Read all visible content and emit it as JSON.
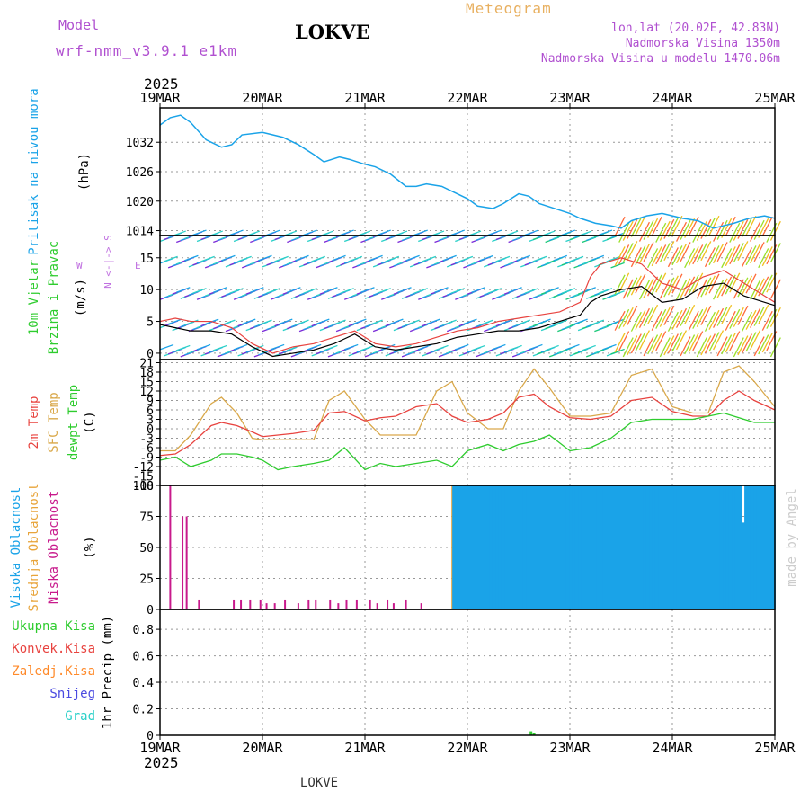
{
  "header": {
    "model_label": "Model",
    "model_name": "wrf-nmm_v3.9.1 e1km",
    "station": "LOKVE",
    "title": "Meteogram",
    "coords": "lon,lat (20.02E, 42.83N)",
    "elevation": "Nadmorska Visina 1350m",
    "model_elevation": "Nadmorska Visina u modelu 1470.06m",
    "credit": "made by Angel"
  },
  "colors": {
    "pressure": "#1aa3e8",
    "temp2m": "#e8433f",
    "sfc_temp": "#d9a84a",
    "dewpoint": "#2ecc2e",
    "high_cloud": "#1aa3e8",
    "mid_cloud": "#e8a43a",
    "low_cloud": "#c81a8c",
    "wind_speed": "#000000",
    "wind_gust": "#e8433f"
  },
  "time_axis": {
    "year": "2025",
    "labels": [
      "19MAR",
      "20MAR",
      "21MAR",
      "22MAR",
      "23MAR",
      "24MAR",
      "25MAR"
    ]
  },
  "panels": {
    "pressure": {
      "ylabel_left": "Pritisak na nivou mora",
      "unit": "(hPa)",
      "ticks": [
        "1014",
        "1020",
        "1026",
        "1032"
      ]
    },
    "wind": {
      "ylabel_left_1": "10m Vjetar",
      "ylabel_left_2": "Brzina i Pravac",
      "unit": "(m/s)",
      "ticks": [
        "0",
        "5",
        "10",
        "15"
      ],
      "compass": [
        "N",
        "W",
        "E",
        "S"
      ]
    },
    "temp": {
      "ylabel_1": "2m Temp",
      "ylabel_2": "SFC Temp",
      "ylabel_3": "dewpt Temp",
      "unit": "(C)",
      "ticks": [
        "-18",
        "-15",
        "-12",
        "-9",
        "-6",
        "-3",
        "0",
        "3",
        "6",
        "9",
        "12",
        "15",
        "18",
        "21"
      ]
    },
    "cloud": {
      "ylabel_1": "Visoka Oblacnost",
      "ylabel_2": "Srednja Oblacnost",
      "ylabel_3": "Niska Oblacnost",
      "unit": "(%)",
      "ticks": [
        "0",
        "25",
        "50",
        "75",
        "100"
      ]
    },
    "precip": {
      "ylabel": "1hr Precip (mm)",
      "ticks": [
        "0",
        "0.2",
        "0.4",
        "0.6",
        "0.8"
      ],
      "legend": [
        "Ukupna Kisa",
        "Konvek.Kisa",
        "Zaledj.Kisa",
        "Snijeg",
        "Grad"
      ]
    }
  },
  "chart_data": [
    {
      "type": "line",
      "title": "",
      "ylabel": "Pritisak na nivou mora (hPa)",
      "ylim": [
        1013,
        1039
      ],
      "x": [
        0,
        0.1,
        0.2,
        0.3,
        0.45,
        0.6,
        0.7,
        0.8,
        1,
        1.1,
        1.2,
        1.35,
        1.5,
        1.6,
        1.75,
        1.85,
        2,
        2.1,
        2.25,
        2.4,
        2.5,
        2.6,
        2.75,
        2.9,
        3,
        3.1,
        3.25,
        3.35,
        3.5,
        3.6,
        3.7,
        3.85,
        4,
        4.1,
        4.25,
        4.4,
        4.5,
        4.6,
        4.75,
        4.9,
        5,
        5.1,
        5.25,
        5.4,
        5.5,
        5.6,
        5.75,
        5.9,
        6
      ],
      "series": [
        {
          "name": "",
          "values": [
            1035.5,
            1037,
            1037.5,
            1036,
            1032.5,
            1031,
            1031.5,
            1033.5,
            1034,
            1033.5,
            1033,
            1031.5,
            1029.5,
            1028,
            1029,
            1028.5,
            1027.5,
            1027,
            1025.5,
            1023,
            1023,
            1023.5,
            1023,
            1021.5,
            1020.5,
            1019,
            1018.5,
            1019.5,
            1021.5,
            1021,
            1019.5,
            1018.5,
            1017.5,
            1016.5,
            1015.5,
            1015,
            1014.5,
            1016,
            1017,
            1017.5,
            1017,
            1016.5,
            1016,
            1014.5,
            1015,
            1015.5,
            1016.5,
            1017,
            1016.5
          ]
        }
      ]
    },
    {
      "type": "line",
      "title": "",
      "ylabel": "10m Vjetar Brzina i Pravac (m/s)",
      "ylim": [
        -1,
        18.5
      ],
      "x": [
        0,
        0.15,
        0.3,
        0.5,
        0.7,
        0.9,
        1.1,
        1.3,
        1.5,
        1.7,
        1.9,
        2.1,
        2.3,
        2.5,
        2.7,
        2.9,
        3.1,
        3.3,
        3.5,
        3.7,
        3.9,
        4.1,
        4.2,
        4.3,
        4.5,
        4.7,
        4.9,
        5.1,
        5.3,
        5.5,
        5.7,
        5.9,
        6
      ],
      "series": [
        {
          "name": "",
          "values": [
            4.5,
            4,
            3.5,
            3.5,
            3,
            1,
            -0.5,
            0,
            0.5,
            1.5,
            3,
            1,
            0.5,
            1,
            1.5,
            2.5,
            3,
            3.5,
            3.5,
            4,
            5,
            6,
            8,
            9,
            10,
            10.5,
            8,
            8.5,
            10.5,
            11,
            9,
            8,
            7.5
          ]
        },
        {
          "name": "",
          "values": [
            5,
            5.5,
            5,
            5,
            4,
            1.5,
            0,
            1,
            1.5,
            2.5,
            3.5,
            1.5,
            1,
            1.5,
            2.5,
            3.5,
            4,
            5,
            5.5,
            6,
            6.5,
            8,
            12,
            14,
            15,
            14,
            11,
            10,
            12,
            13,
            11,
            9,
            8
          ]
        }
      ]
    },
    {
      "type": "line",
      "title": "",
      "ylabel": "(C)",
      "ylim": [
        -18,
        22
      ],
      "x": [
        0,
        0.15,
        0.3,
        0.5,
        0.6,
        0.75,
        0.9,
        1,
        1.15,
        1.3,
        1.5,
        1.65,
        1.8,
        2,
        2.15,
        2.3,
        2.5,
        2.7,
        2.85,
        3,
        3.2,
        3.35,
        3.5,
        3.65,
        3.8,
        4,
        4.2,
        4.4,
        4.6,
        4.8,
        5,
        5.2,
        5.35,
        5.5,
        5.65,
        5.8,
        6
      ],
      "series": [
        {
          "name": "2m Temp",
          "values": [
            -8.5,
            -8,
            -5,
            1,
            2,
            1,
            -1,
            -2.5,
            -2,
            -1.5,
            -0.5,
            5,
            5.5,
            2.5,
            3.5,
            4,
            7,
            8,
            4,
            2,
            3,
            5,
            10,
            11,
            7,
            3.5,
            3,
            4,
            9,
            10,
            5.5,
            4,
            4,
            9,
            12,
            9,
            6
          ]
        },
        {
          "name": "SFC Temp",
          "values": [
            -7,
            -7,
            -2,
            8,
            10,
            5,
            -3,
            -3.5,
            -3.5,
            -3.5,
            -3.5,
            9,
            12,
            3,
            -2,
            -2,
            -2,
            12,
            15,
            5,
            0,
            0,
            12,
            19,
            13,
            4,
            4,
            5,
            17,
            19,
            7,
            5,
            5,
            18,
            20,
            15,
            7
          ]
        },
        {
          "name": "dewpt Temp",
          "values": [
            -10,
            -9,
            -12,
            -10,
            -8,
            -8,
            -9,
            -10,
            -13,
            -12,
            -11,
            -10,
            -6,
            -13,
            -11,
            -12,
            -11,
            -10,
            -12,
            -7,
            -5,
            -7,
            -5,
            -4,
            -2,
            -7,
            -6,
            -3,
            2,
            3,
            3,
            3,
            4,
            5,
            3.5,
            2,
            2
          ]
        }
      ]
    },
    {
      "type": "bar",
      "title": "",
      "ylabel": "Oblacnost (%)",
      "ylim": [
        0,
        100
      ],
      "series": [
        {
          "name": "Niska Oblacnost",
          "x": [
            0.1,
            0.22,
            0.26,
            0.38,
            0.72,
            0.79,
            0.88,
            0.98,
            1.04,
            1.12,
            1.22,
            1.35,
            1.45,
            1.52,
            1.66,
            1.74,
            1.82,
            1.92,
            2.05,
            2.12,
            2.22,
            2.28,
            2.4,
            2.55
          ],
          "values": [
            100,
            75,
            75,
            8,
            8,
            8,
            8,
            8,
            5,
            5,
            8,
            5,
            8,
            8,
            8,
            5,
            8,
            8,
            8,
            5,
            8,
            5,
            8,
            5
          ]
        },
        {
          "name": "Srednja Oblacnost",
          "x_range": [
            2.85,
            4.95
          ],
          "values": [
            100
          ],
          "gaps": [
            3.63,
            4.05
          ]
        },
        {
          "name": "Visoka Oblacnost",
          "x_range": [
            2.87,
            6
          ],
          "values": [
            100
          ],
          "dips": [
            {
              "x": 5.7,
              "value": 70
            }
          ]
        }
      ]
    },
    {
      "type": "bar",
      "title": "",
      "ylabel": "1hr Precip (mm)",
      "ylim": [
        0,
        0.95
      ],
      "series": [
        {
          "name": "Ukupna Kisa",
          "x": [
            3.62,
            3.65
          ],
          "values": [
            0.03,
            0.02
          ]
        }
      ]
    }
  ]
}
